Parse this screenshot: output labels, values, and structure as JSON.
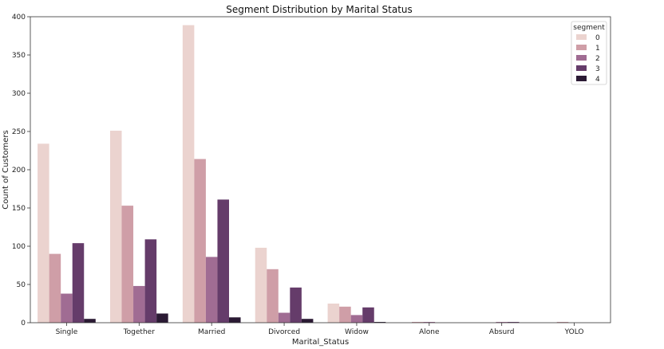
{
  "chart_data": {
    "type": "bar",
    "title": "Segment Distribution by Marital Status",
    "xlabel": "Marital_Status",
    "ylabel": "Count of Customers",
    "ylim": [
      0,
      400
    ],
    "yticks": [
      0,
      50,
      100,
      150,
      200,
      250,
      300,
      350,
      400
    ],
    "categories": [
      "Single",
      "Together",
      "Married",
      "Divorced",
      "Widow",
      "Alone",
      "Absurd",
      "YOLO"
    ],
    "grid": false,
    "legend": {
      "title": "segment",
      "placement": "top-right"
    },
    "series": [
      {
        "name": "0",
        "color": "#ebd3cf",
        "values": [
          234,
          251,
          389,
          98,
          25,
          0,
          0,
          0
        ]
      },
      {
        "name": "1",
        "color": "#cf9ea7",
        "values": [
          90,
          153,
          214,
          70,
          21,
          1,
          0,
          1
        ]
      },
      {
        "name": "2",
        "color": "#a06c93",
        "values": [
          38,
          48,
          86,
          13,
          10,
          1,
          1,
          0
        ]
      },
      {
        "name": "3",
        "color": "#653c6a",
        "values": [
          104,
          109,
          161,
          46,
          20,
          0,
          1,
          0
        ]
      },
      {
        "name": "4",
        "color": "#2b1a34",
        "values": [
          5,
          12,
          7,
          5,
          1,
          0,
          0,
          0
        ]
      }
    ]
  }
}
